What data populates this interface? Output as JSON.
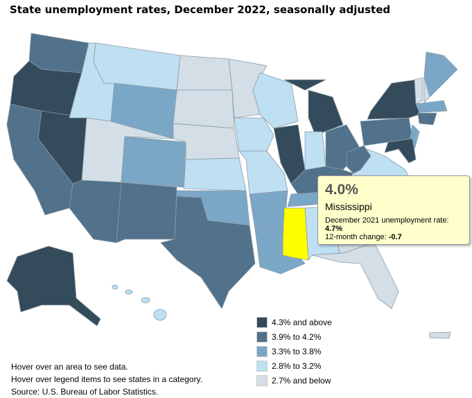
{
  "title": "State unemployment rates, December 2022, seasonally adjusted",
  "legend": [
    {
      "label": "4.3% and above",
      "color": "#344b5b"
    },
    {
      "label": "3.9% to 4.2%",
      "color": "#52718a"
    },
    {
      "label": "3.3% to 3.8%",
      "color": "#7ba7c7"
    },
    {
      "label": "2.8% to 3.2%",
      "color": "#bfdff2"
    },
    {
      "label": "2.7% and below",
      "color": "#d3dee6"
    }
  ],
  "highlight_color": "#ffff00",
  "tooltip": {
    "value": "4.0%",
    "state": "Mississippi",
    "prior_label": "December 2021 unemployment rate:",
    "prior_value": "4.7%",
    "change_label": "12-month change:",
    "change_value": "-0.7"
  },
  "notes": [
    "Hover over an area to see data.",
    "Hover over legend items to see states in a category.",
    "Source: U.S. Bureau of Labor Statistics."
  ]
}
